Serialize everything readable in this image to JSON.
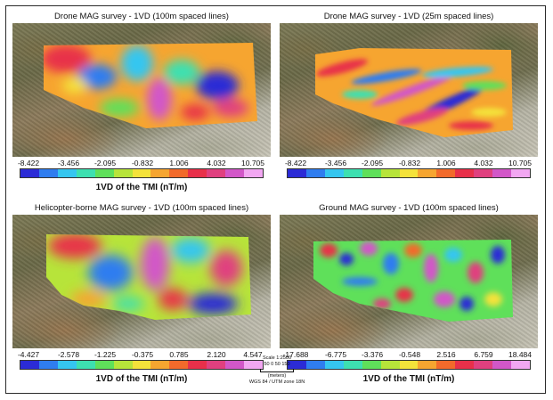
{
  "panels": [
    {
      "title": "Drone MAG survey - 1VD (100m spaced lines)",
      "ticks": [
        "-8.422",
        "-3.456",
        "-2.095",
        "-0.832",
        "1.006",
        "4.032",
        "10.705"
      ],
      "colorbar_label": "1VD of the TMI (nT/m)"
    },
    {
      "title": "Drone MAG survey - 1VD (25m spaced lines)",
      "ticks": [
        "-8.422",
        "-3.456",
        "-2.095",
        "-0.832",
        "1.006",
        "4.032",
        "10.705"
      ],
      "colorbar_label": "1VD of the TMI (nT/m)"
    },
    {
      "title": "Helicopter-borne MAG survey - 1VD (100m spaced lines)",
      "ticks": [
        "-4.427",
        "-2.578",
        "-1.225",
        "-0.375",
        "0.785",
        "2.120",
        "4.547"
      ],
      "colorbar_label": "1VD of the TMI (nT/m)"
    },
    {
      "title": "Ground MAG survey - 1VD (100m spaced lines)",
      "ticks": [
        "-17.688",
        "-6.775",
        "-3.376",
        "-0.548",
        "2.516",
        "6.759",
        "18.484"
      ],
      "colorbar_label": "1VD of the TMI (nT/m)"
    }
  ],
  "colorscale": [
    "#2b2bd6",
    "#2f7df0",
    "#35c6f0",
    "#3de0b0",
    "#5fe05a",
    "#b7e43a",
    "#f4e23a",
    "#f6a530",
    "#f26a2b",
    "#e8304a",
    "#e0407f",
    "#d257c8",
    "#f2a7f2"
  ],
  "scale": {
    "title": "Scale 1:2500",
    "numbers": "50  0   50    150",
    "unit": "(meters)",
    "crs": "WGS 84 / UTM zone 18N"
  }
}
